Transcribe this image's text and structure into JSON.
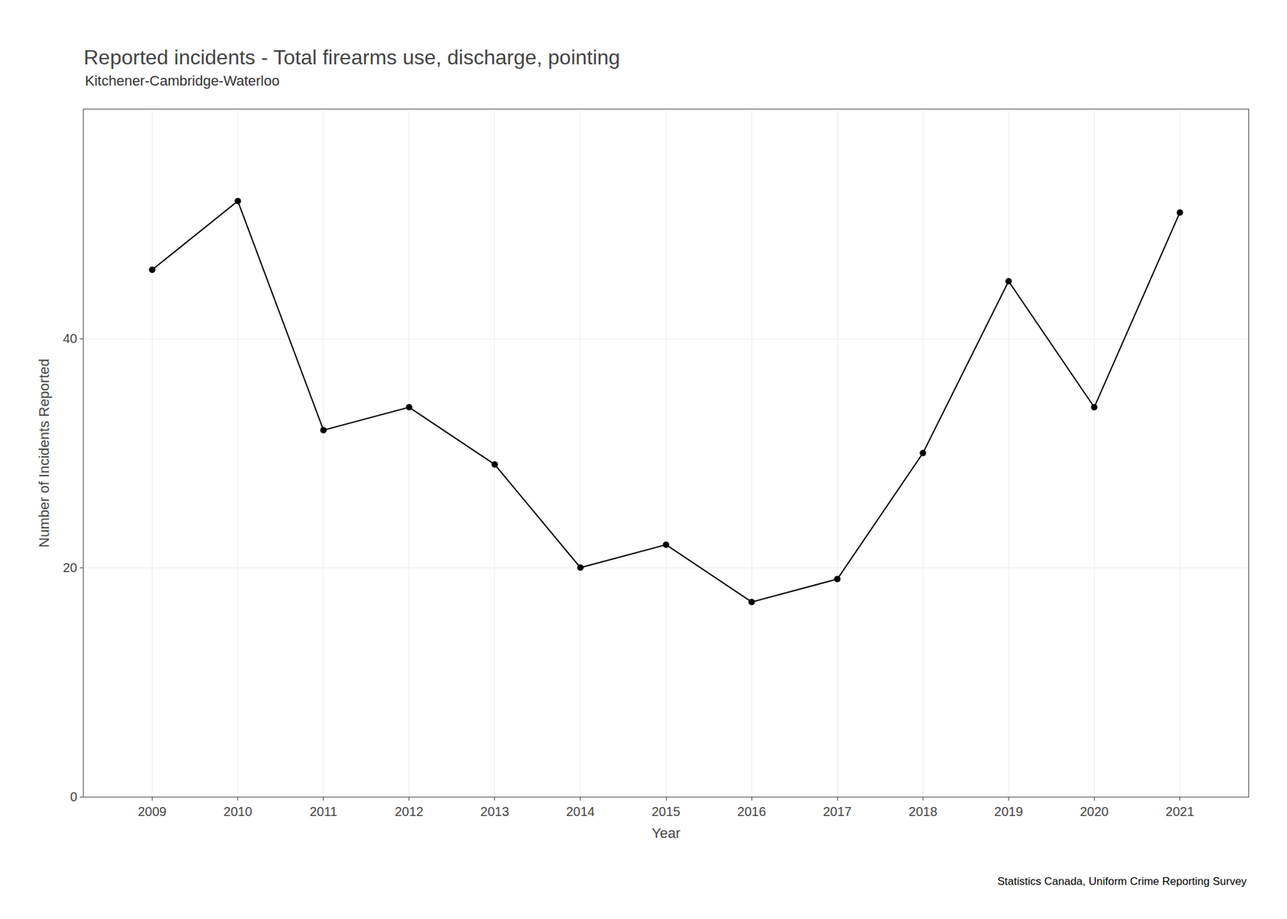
{
  "chart_data": {
    "type": "line",
    "title": "Reported incidents - Total firearms use, discharge, pointing",
    "subtitle": "Kitchener-Cambridge-Waterloo",
    "caption": "Statistics Canada, Uniform Crime Reporting Survey",
    "xlabel": "Year",
    "ylabel": "Number of Incidents Reported",
    "x": [
      2009,
      2010,
      2011,
      2012,
      2013,
      2014,
      2015,
      2016,
      2017,
      2018,
      2019,
      2020,
      2021
    ],
    "values": [
      46,
      52,
      32,
      34,
      29,
      20,
      22,
      17,
      19,
      30,
      45,
      34,
      51
    ],
    "xlim": [
      2008.2,
      2021.8
    ],
    "xticks": [
      2009,
      2010,
      2011,
      2012,
      2013,
      2014,
      2015,
      2016,
      2017,
      2018,
      2019,
      2020,
      2021
    ],
    "ylim": [
      0,
      60
    ],
    "yticks": [
      0,
      20,
      40
    ],
    "color": "#000000",
    "marker": "circle",
    "line_style": "solid",
    "grid": true
  }
}
